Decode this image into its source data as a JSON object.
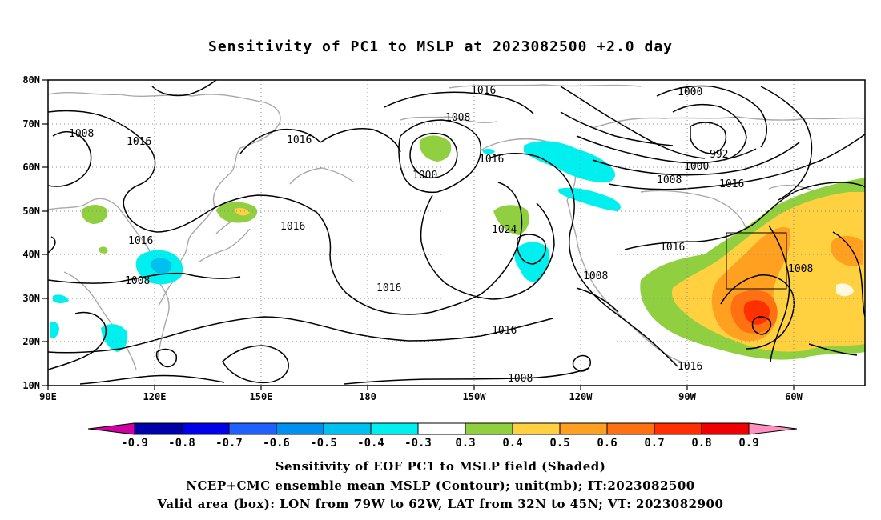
{
  "title": "Sensitivity of PC1 to MSLP at 2023082500 +2.0 day",
  "map": {
    "lon_labels": [
      "90E",
      "120E",
      "150E",
      "180",
      "150W",
      "120W",
      "90W",
      "60W"
    ],
    "lat_labels": [
      "80N",
      "70N",
      "60N",
      "50N",
      "40N",
      "30N",
      "20N",
      "10N"
    ],
    "contour_labels": [
      "1016",
      "1008",
      "1016",
      "1008",
      "1016",
      "1000",
      "992",
      "1000",
      "1008",
      "1016",
      "1008",
      "1016",
      "1000",
      "1016",
      "1024",
      "1016",
      "1016",
      "1008",
      "1016",
      "1016",
      "1008",
      "1008",
      "1016",
      "1008"
    ],
    "valid_box_label": "Valid area (box)"
  },
  "colorbar": {
    "labels": [
      "-0.9",
      "-0.8",
      "-0.7",
      "-0.6",
      "-0.5",
      "-0.4",
      "-0.3",
      "0.3",
      "0.4",
      "0.5",
      "0.6",
      "0.7",
      "0.8",
      "0.9"
    ],
    "colors": [
      "#d000a0",
      "#0000a8",
      "#0000e8",
      "#2060ff",
      "#0090f0",
      "#00c0f0",
      "#00f0f0",
      "#ffffff",
      "#90d040",
      "#ffd040",
      "#ffa020",
      "#ff7010",
      "#ff3000",
      "#f00000",
      "#ff90c0"
    ]
  },
  "footer": {
    "line1": "Sensitivity of EOF PC1 to MSLP field (Shaded)",
    "line2": "NCEP+CMC ensemble mean MSLP (Contour); unit(mb); IT:2023082500",
    "line3": "Valid area (box): LON from 79W to 62W, LAT from 32N to 45N; VT: 2023082900"
  }
}
